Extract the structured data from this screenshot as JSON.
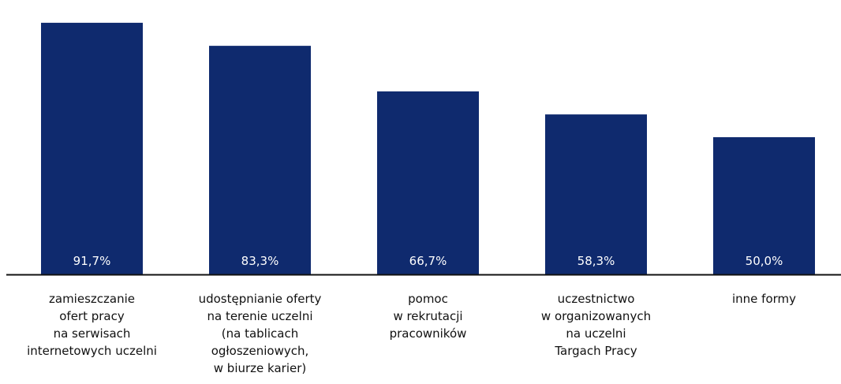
{
  "colors": {
    "bar": "#0f2a6e",
    "axis": "#111111",
    "value_text": "#ffffff",
    "label_text": "#111111"
  },
  "chart_data": {
    "type": "bar",
    "categories": [
      [
        "zamieszczanie",
        "ofert pracy",
        "na serwisach",
        "internetowych uczelni"
      ],
      [
        "udostępnianie oferty",
        "na terenie uczelni",
        "(na tablicach",
        "ogłoszeniowych,",
        "w biurze karier)"
      ],
      [
        "pomoc",
        "w rekrutacji",
        "pracowników"
      ],
      [
        "uczestnictwo",
        "w organizowanych",
        "na uczelni",
        "Targach Pracy"
      ],
      [
        "inne formy"
      ]
    ],
    "values": [
      91.7,
      83.3,
      66.7,
      58.3,
      50.0
    ],
    "value_labels": [
      "91,7%",
      "83,3%",
      "66,7%",
      "58,3%",
      "50,0%"
    ],
    "title": "",
    "xlabel": "",
    "ylabel": "",
    "ylim": [
      0,
      100
    ],
    "grid": false,
    "legend": "none"
  }
}
